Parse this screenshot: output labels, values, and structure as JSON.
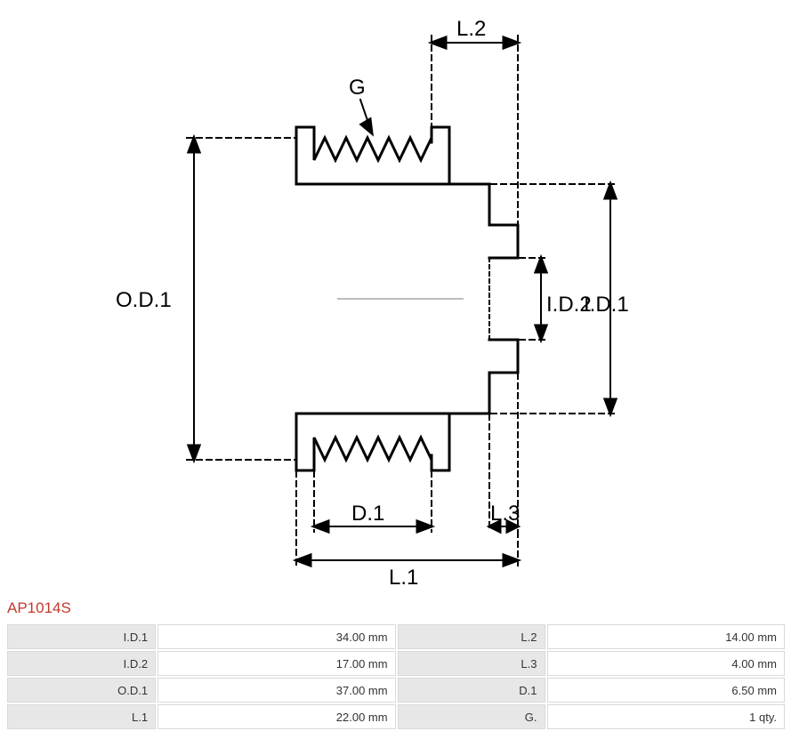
{
  "part_number": "AP1014S",
  "diagram": {
    "labels": {
      "OD1": "O.D.1",
      "ID1": "I.D.1",
      "ID2": "I.D.2",
      "D1": "D.1",
      "L1": "L.1",
      "L2": "L.2",
      "L3": "L.3",
      "G": "G"
    },
    "stroke": "#000000",
    "stroke_width": 3,
    "dash": "6,5"
  },
  "spec_rows": [
    {
      "k1": "I.D.1",
      "v1": "34.00 mm",
      "k2": "L.2",
      "v2": "14.00 mm"
    },
    {
      "k1": "I.D.2",
      "v1": "17.00 mm",
      "k2": "L.3",
      "v2": "4.00 mm"
    },
    {
      "k1": "O.D.1",
      "v1": "37.00 mm",
      "k2": "D.1",
      "v2": "6.50 mm"
    },
    {
      "k1": "L.1",
      "v1": "22.00 mm",
      "k2": "G.",
      "v2": "1 qty."
    }
  ],
  "colors": {
    "part_label": "#c0392b",
    "cell_border": "#d9d9d9",
    "key_bg": "#e7e7e7"
  }
}
